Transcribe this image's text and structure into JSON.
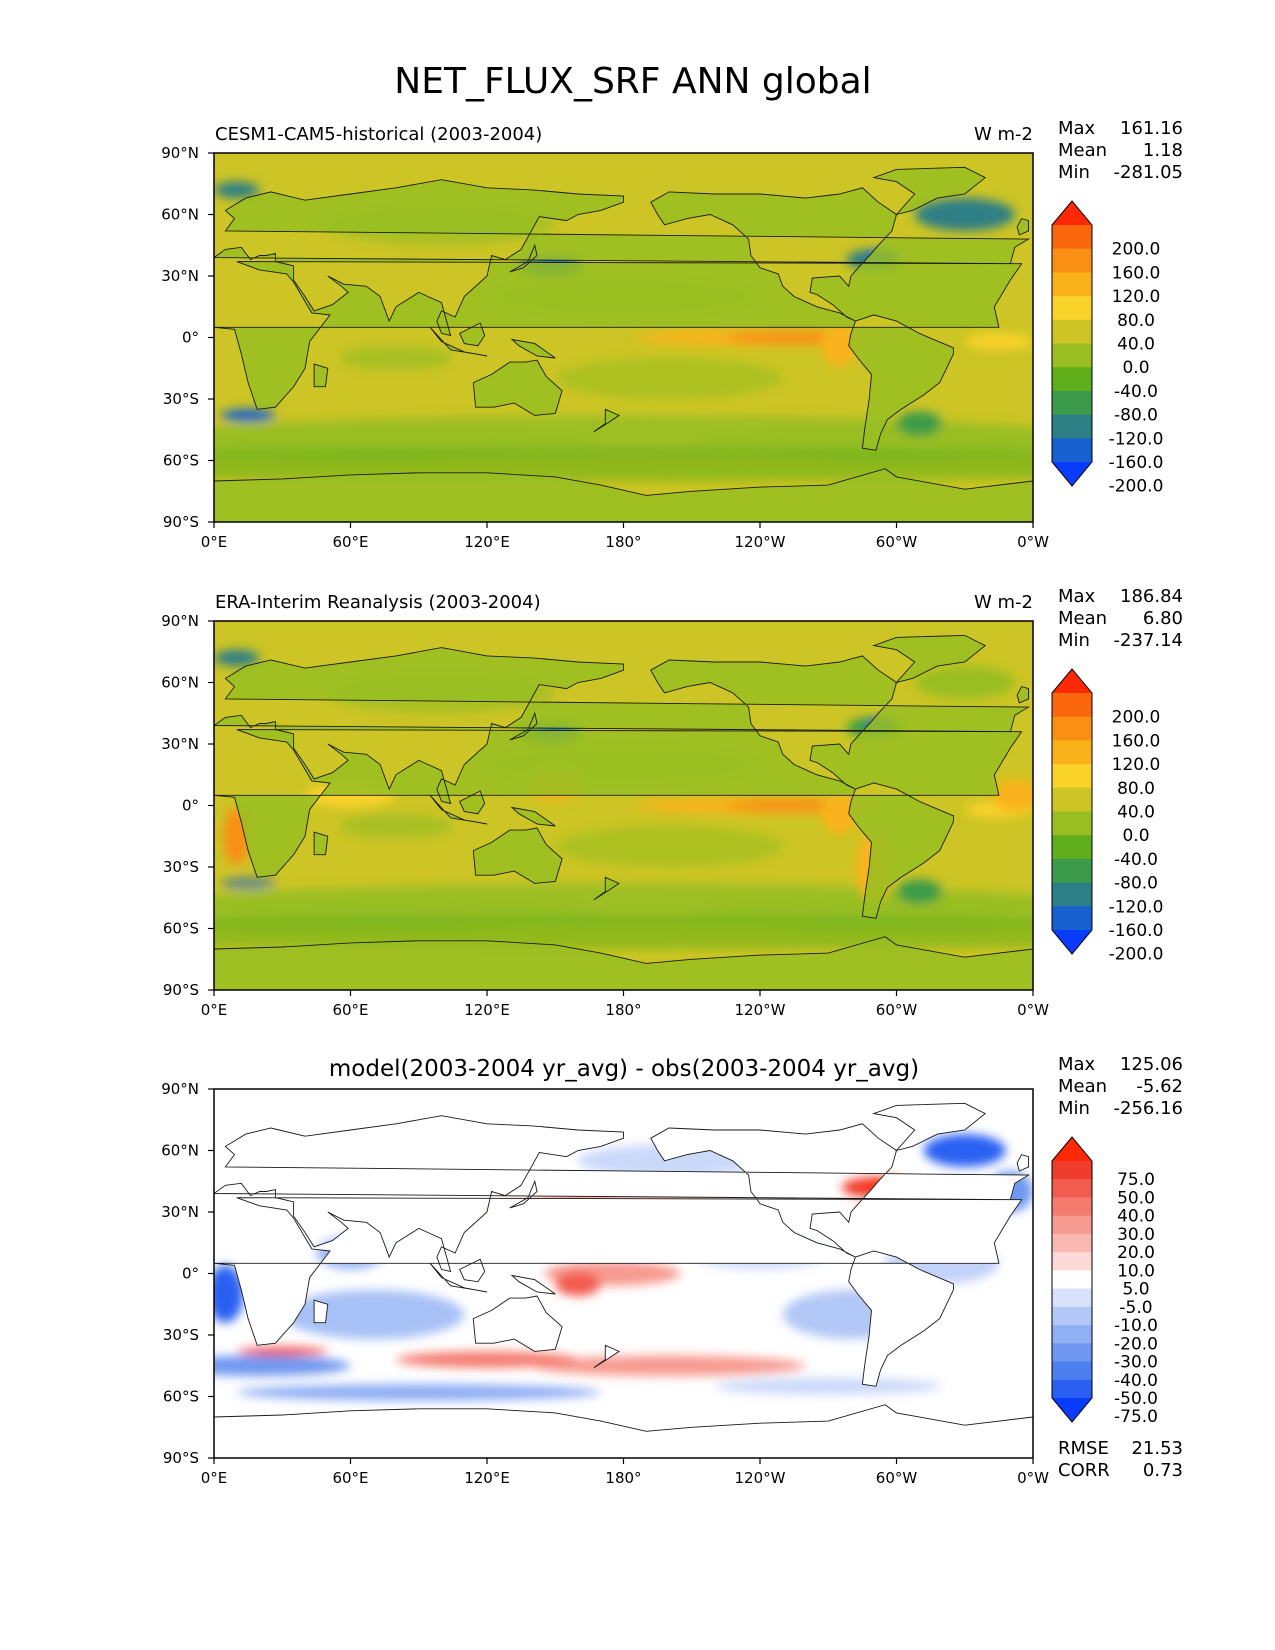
{
  "title": "NET_FLUX_SRF ANN global",
  "colors": {
    "main_scale": [
      "#0a3cff",
      "#1661cf",
      "#2d7f86",
      "#3b9b4a",
      "#5fae1a",
      "#98be22",
      "#cdc525",
      "#f9d22a",
      "#f9b21a",
      "#f98f13",
      "#f9660c",
      "#ff2a05"
    ],
    "diff_scale": [
      "#0a3cff",
      "#2c60f2",
      "#4c7ff0",
      "#6f97f1",
      "#91b0f4",
      "#b3c7f8",
      "#d8e2fc",
      "#ffffff",
      "#fcd9d7",
      "#f9b8b2",
      "#f79a90",
      "#f47b6e",
      "#f25c4e",
      "#f03c2c",
      "#ff2a05"
    ],
    "land": "#ffffff",
    "coast": "#1a1a1a"
  },
  "chart_data": [
    {
      "type": "heatmap",
      "title": "CESM1-CAM5-historical (2003-2004)",
      "units": "W m-2",
      "stats": [
        {
          "label": "Max",
          "value": "161.16"
        },
        {
          "label": "Mean",
          "value": "1.18"
        },
        {
          "label": "Min",
          "value": "-281.05"
        }
      ],
      "xticks": [
        "0°E",
        "60°E",
        "120°E",
        "180°",
        "120°W",
        "60°W",
        "0°W"
      ],
      "yticks": [
        "90°N",
        "60°N",
        "30°N",
        "0°",
        "30°S",
        "60°S",
        "90°S"
      ],
      "colorbar": {
        "palette": "main_scale",
        "levels": [
          "200.0",
          "160.0",
          "120.0",
          "80.0",
          "40.0",
          "0.0",
          "-40.0",
          "-80.0",
          "-120.0",
          "-160.0",
          "-200.0"
        ]
      },
      "xlim": [
        0,
        360
      ],
      "ylim": [
        -90,
        90
      ]
    },
    {
      "type": "heatmap",
      "title": "ERA-Interim Reanalysis (2003-2004)",
      "units": "W m-2",
      "stats": [
        {
          "label": "Max",
          "value": "186.84"
        },
        {
          "label": "Mean",
          "value": "6.80"
        },
        {
          "label": "Min",
          "value": "-237.14"
        }
      ],
      "xticks": [
        "0°E",
        "60°E",
        "120°E",
        "180°",
        "120°W",
        "60°W",
        "0°W"
      ],
      "yticks": [
        "90°N",
        "60°N",
        "30°N",
        "0°",
        "30°S",
        "60°S",
        "90°S"
      ],
      "colorbar": {
        "palette": "main_scale",
        "levels": [
          "200.0",
          "160.0",
          "120.0",
          "80.0",
          "40.0",
          "0.0",
          "-40.0",
          "-80.0",
          "-120.0",
          "-160.0",
          "-200.0"
        ]
      },
      "xlim": [
        0,
        360
      ],
      "ylim": [
        -90,
        90
      ]
    },
    {
      "type": "heatmap",
      "title": "model(2003-2004 yr_avg) - obs(2003-2004 yr_avg)",
      "units": "",
      "stats": [
        {
          "label": "Max",
          "value": "125.06"
        },
        {
          "label": "Mean",
          "value": "-5.62"
        },
        {
          "label": "Min",
          "value": "-256.16"
        }
      ],
      "extra_stats": [
        {
          "label": "RMSE",
          "value": "21.53"
        },
        {
          "label": "CORR",
          "value": "0.73"
        }
      ],
      "xticks": [
        "0°E",
        "60°E",
        "120°E",
        "180°",
        "120°W",
        "60°W",
        "0°W"
      ],
      "yticks": [
        "90°N",
        "60°N",
        "30°N",
        "0°",
        "30°S",
        "60°S",
        "90°S"
      ],
      "colorbar": {
        "palette": "diff_scale",
        "levels": [
          "75.0",
          "50.0",
          "40.0",
          "30.0",
          "20.0",
          "10.0",
          "5.0",
          "-5.0",
          "-10.0",
          "-20.0",
          "-30.0",
          "-40.0",
          "-50.0",
          "-75.0"
        ]
      },
      "xlim": [
        0,
        360
      ],
      "ylim": [
        -90,
        90
      ]
    }
  ]
}
